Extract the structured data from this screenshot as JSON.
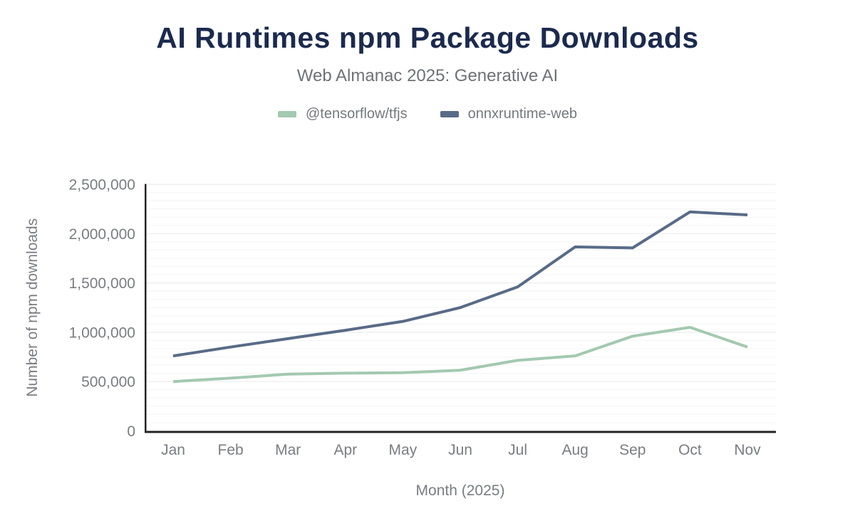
{
  "header": {
    "title": "AI Runtimes npm Package Downloads",
    "subtitle": "Web Almanac 2025: Generative AI"
  },
  "legend": {
    "items": [
      {
        "label": "@tensorflow/tfjs",
        "color": "#a3c9b0"
      },
      {
        "label": "onnxruntime-web",
        "color": "#586b87"
      }
    ]
  },
  "chart_data": {
    "type": "line",
    "x": [
      "Jan",
      "Feb",
      "Mar",
      "Apr",
      "May",
      "Jun",
      "Jul",
      "Aug",
      "Sep",
      "Oct",
      "Nov"
    ],
    "series": [
      {
        "name": "@tensorflow/tfjs",
        "id": "tfjs",
        "color": "#a3c9b0",
        "values": [
          500000,
          535000,
          575000,
          585000,
          590000,
          615000,
          715000,
          760000,
          960000,
          1050000,
          850000
        ]
      },
      {
        "name": "onnxruntime-web",
        "id": "onnxruntime-web",
        "color": "#586b87",
        "values": [
          760000,
          850000,
          935000,
          1020000,
          1110000,
          1250000,
          1460000,
          1865000,
          1855000,
          2220000,
          2190000
        ]
      }
    ],
    "title": "AI Runtimes npm Package Downloads",
    "subtitle": "Web Almanac 2025: Generative AI",
    "xlabel": "Month (2025)",
    "ylabel": "Number of npm downloads",
    "ylim": [
      0,
      2500000
    ],
    "y_tick_step": 500000,
    "y_tick_labels": [
      "0",
      "500,000",
      "1,000,000",
      "1,500,000",
      "2,000,000",
      "2,500,000"
    ],
    "grid": "horizontal",
    "minor_divisions_per_major": 6,
    "legend_position": "top"
  },
  "colors": {
    "title": "#1b2a4e",
    "subtitle": "#6e7277",
    "axis_text": "#797d82",
    "axis_line": "#232323",
    "gridline_minor": "#f6f6f7",
    "gridline_major": "#ececee",
    "background": "#ffffff"
  }
}
